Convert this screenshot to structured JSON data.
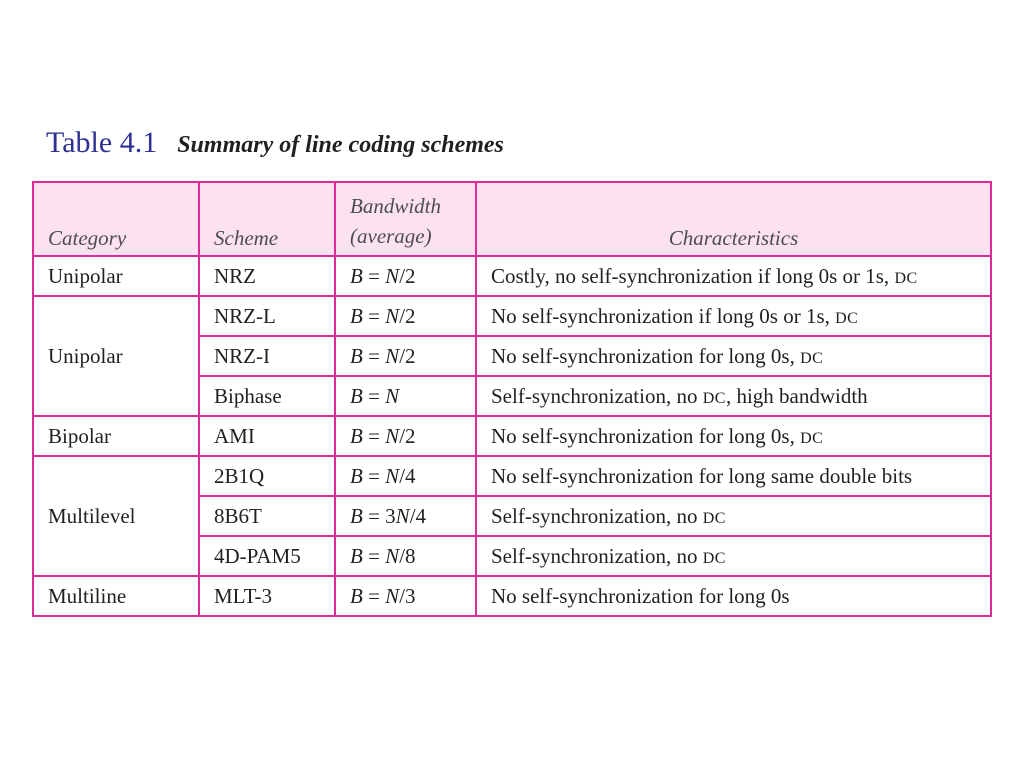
{
  "title": {
    "number": "Table 4.1",
    "text": "Summary of line coding schemes"
  },
  "headers": {
    "category": "Category",
    "scheme": "Scheme",
    "bandwidth_line1": "Bandwidth",
    "bandwidth_line2": "(average)",
    "characteristics": "Characteristics"
  },
  "rows": [
    {
      "category": "Unipolar",
      "scheme": "NRZ",
      "bw": [
        "B",
        " = ",
        "N",
        "/2"
      ],
      "char_main": "Costly, no self-synchronization if long 0s or 1s, ",
      "char_sc": "DC",
      "char_tail": ""
    },
    {
      "category": "Unipolar",
      "scheme": "NRZ-L",
      "bw": [
        "B",
        " = ",
        "N",
        "/2"
      ],
      "char_main": "No self-synchronization if long 0s or 1s, ",
      "char_sc": "DC",
      "char_tail": ""
    },
    {
      "category": "",
      "scheme": "NRZ-I",
      "bw": [
        "B",
        " = ",
        "N",
        "/2"
      ],
      "char_main": "No self-synchronization for long 0s, ",
      "char_sc": "DC",
      "char_tail": ""
    },
    {
      "category": "",
      "scheme": "Biphase",
      "bw": [
        "B",
        " = ",
        "N",
        ""
      ],
      "char_main": "Self-synchronization, no ",
      "char_sc": "DC",
      "char_tail": ", high bandwidth"
    },
    {
      "category": "Bipolar",
      "scheme": "AMI",
      "bw": [
        "B",
        " = ",
        "N",
        "/2"
      ],
      "char_main": "No self-synchronization for long 0s, ",
      "char_sc": "DC",
      "char_tail": ""
    },
    {
      "category": "Multilevel",
      "scheme": "2B1Q",
      "bw": [
        "B",
        " = ",
        "N",
        "/4"
      ],
      "char_main": "No self-synchronization for long same double bits",
      "char_sc": "",
      "char_tail": ""
    },
    {
      "category": "",
      "scheme": "8B6T",
      "bw": [
        "B",
        " = 3",
        "N",
        "/4"
      ],
      "char_main": "Self-synchronization, no ",
      "char_sc": "DC",
      "char_tail": ""
    },
    {
      "category": "",
      "scheme": "4D-PAM5",
      "bw": [
        "B",
        " = ",
        "N",
        "/8"
      ],
      "char_main": "Self-synchronization, no ",
      "char_sc": "DC",
      "char_tail": ""
    },
    {
      "category": "Multiline",
      "scheme": "MLT-3",
      "bw": [
        "B",
        " = ",
        "N",
        "/3"
      ],
      "char_main": "No self-synchronization for long 0s",
      "char_sc": "",
      "char_tail": ""
    }
  ]
}
